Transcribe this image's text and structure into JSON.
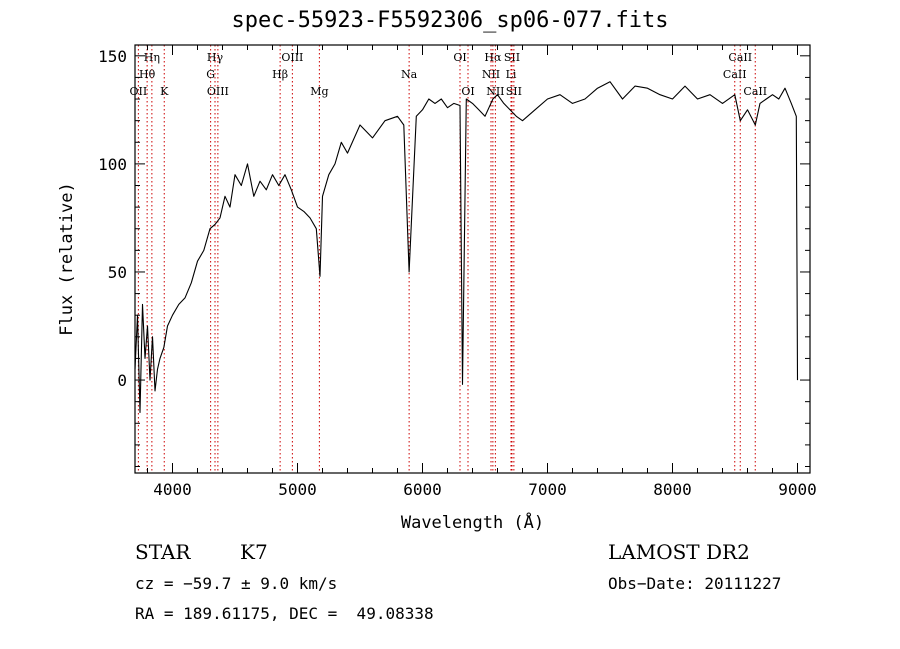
{
  "chart_data": {
    "type": "line",
    "title": "spec-55923-F5592306_sp06-077.fits",
    "xlabel": "Wavelength (Å)",
    "ylabel": "Flux (relative)",
    "xlim": [
      3700,
      9100
    ],
    "ylim": [
      -43,
      155
    ],
    "xticks": [
      4000,
      5000,
      6000,
      7000,
      8000,
      9000
    ],
    "yticks": [
      0,
      50,
      100,
      150
    ],
    "grid": false,
    "series": [
      {
        "x": [
          3700,
          3720,
          3740,
          3760,
          3780,
          3800,
          3820,
          3840,
          3860,
          3880,
          3900,
          3930,
          3960,
          4000,
          4050,
          4100,
          4150,
          4200,
          4250,
          4300,
          4340,
          4380,
          4420,
          4460,
          4500,
          4550,
          4600,
          4650,
          4700,
          4750,
          4800,
          4850,
          4900,
          4950,
          5000,
          5050,
          5100,
          5150,
          5180,
          5200,
          5250,
          5300,
          5350,
          5400,
          5500,
          5600,
          5700,
          5800,
          5850,
          5893,
          5950,
          6000,
          6050,
          6100,
          6150,
          6200,
          6250,
          6300,
          6320,
          6350,
          6400,
          6450,
          6500,
          6563,
          6600,
          6650,
          6700,
          6750,
          6800,
          6900,
          7000,
          7100,
          7200,
          7300,
          7400,
          7500,
          7600,
          7700,
          7800,
          7900,
          8000,
          8100,
          8200,
          8300,
          8400,
          8498,
          8542,
          8600,
          8662,
          8700,
          8750,
          8800,
          8850,
          8900,
          8950,
          8990,
          9000
        ],
        "y": [
          5,
          30,
          -15,
          35,
          10,
          25,
          0,
          20,
          -5,
          5,
          10,
          15,
          25,
          30,
          35,
          38,
          45,
          55,
          60,
          70,
          72,
          75,
          85,
          80,
          95,
          90,
          100,
          85,
          92,
          88,
          95,
          90,
          95,
          88,
          80,
          78,
          75,
          70,
          48,
          85,
          95,
          100,
          110,
          105,
          118,
          112,
          120,
          122,
          118,
          50,
          122,
          125,
          130,
          128,
          130,
          126,
          128,
          127,
          -2,
          130,
          128,
          125,
          122,
          130,
          132,
          128,
          125,
          122,
          120,
          125,
          130,
          132,
          128,
          130,
          135,
          138,
          130,
          136,
          135,
          132,
          130,
          136,
          130,
          132,
          128,
          132,
          120,
          125,
          118,
          128,
          130,
          132,
          130,
          135,
          128,
          122,
          0
        ]
      }
    ],
    "line_ids": [
      {
        "label": "Hη",
        "x": 3835,
        "row": 0
      },
      {
        "label": "Hθ",
        "x": 3797,
        "row": 1
      },
      {
        "label": "OII",
        "x": 3727,
        "row": 2
      },
      {
        "label": "K",
        "x": 3934,
        "row": 2
      },
      {
        "label": "Hγ",
        "x": 4340,
        "row": 0
      },
      {
        "label": "G",
        "x": 4305,
        "row": 1
      },
      {
        "label": "OIII",
        "x": 4363,
        "row": 2
      },
      {
        "label": "OIII",
        "x": 4959,
        "row": 0
      },
      {
        "label": "Hβ",
        "x": 4861,
        "row": 1
      },
      {
        "label": "Mg",
        "x": 5175,
        "row": 2
      },
      {
        "label": "Na",
        "x": 5893,
        "row": 1
      },
      {
        "label": "OI",
        "x": 6300,
        "row": 0
      },
      {
        "label": "OI",
        "x": 6364,
        "row": 2
      },
      {
        "label": "Hα",
        "x": 6563,
        "row": 0
      },
      {
        "label": "SII",
        "x": 6716,
        "row": 0
      },
      {
        "label": "NII",
        "x": 6548,
        "row": 1
      },
      {
        "label": "Li",
        "x": 6708,
        "row": 1
      },
      {
        "label": "NII",
        "x": 6583,
        "row": 2
      },
      {
        "label": "SII",
        "x": 6731,
        "row": 2
      },
      {
        "label": "CaII",
        "x": 8542,
        "row": 0
      },
      {
        "label": "CaII",
        "x": 8498,
        "row": 1
      },
      {
        "label": "CaII",
        "x": 8662,
        "row": 2
      }
    ]
  },
  "info": {
    "class_label": "STAR",
    "subclass": "K7",
    "survey": "LAMOST DR2",
    "cz": "cz = −59.7 ± 9.0 km/s",
    "obs_date": "Obs−Date: 20111227",
    "coords": "RA = 189.61175, DEC =  49.08338"
  }
}
